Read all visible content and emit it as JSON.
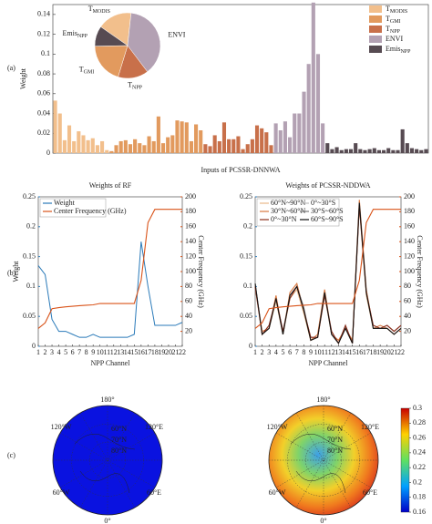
{
  "panel_labels": [
    "(a)",
    "(b)",
    "(c)"
  ],
  "chart_data": [
    {
      "type": "bar",
      "ylabel": "Weight",
      "xlabel": "Inputs of PCSSR-DNNWA",
      "ylim": [
        0,
        0.15
      ],
      "yticks": [
        0,
        0.02,
        0.04,
        0.06,
        0.08,
        0.1,
        0.12,
        0.14
      ],
      "legend": "upper right",
      "series": [
        {
          "name": "T",
          "sub": "MODIS",
          "color": "#f2bf8c",
          "values": [
            0.053,
            0.04,
            0.013,
            0.028,
            0.012,
            0.022,
            0.018,
            0.013,
            0.015,
            0.008,
            0.012,
            0.003
          ]
        },
        {
          "name": "T",
          "sub": "GMI",
          "color": "#e29a5e",
          "values": [
            0.002,
            0.008,
            0.012,
            0.013,
            0.009,
            0.014,
            0.01,
            0.008,
            0.017,
            0.012,
            0.037,
            0.01,
            0.016,
            0.018,
            0.033,
            0.032,
            0.031,
            0.012,
            0.029,
            0.023
          ]
        },
        {
          "name": "T",
          "sub": "NPP",
          "color": "#c8704a",
          "values": [
            0.009,
            0.007,
            0.018,
            0.012,
            0.031,
            0.014,
            0.014,
            0.017,
            0.004,
            0.009,
            0.014,
            0.028,
            0.025,
            0.021,
            0.008
          ]
        },
        {
          "name": "ENVI",
          "color": "#b3a1b3",
          "values": [
            0.03,
            0.023,
            0.032,
            0.016,
            0.04,
            0.04,
            0.062,
            0.09,
            0.152,
            0.1,
            0.03
          ]
        },
        {
          "name": "Emis",
          "sub": "NPP",
          "color": "#574b52",
          "values": [
            0.01,
            0.004,
            0.006,
            0.003,
            0.004,
            0.004,
            0.01,
            0.004,
            0.003,
            0.004,
            0.005,
            0.003,
            0.003,
            0.005,
            0.003,
            0.003,
            0.024,
            0.01,
            0.005,
            0.004,
            0.003,
            0.004
          ]
        }
      ]
    },
    {
      "type": "pie",
      "slices": [
        {
          "name": "T",
          "sub": "MODIS",
          "color": "#f2bf8c",
          "value": 17
        },
        {
          "name": "ENVI",
          "color": "#b3a1b3",
          "value": 38
        },
        {
          "name": "T",
          "sub": "NPP",
          "color": "#c8704a",
          "value": 15
        },
        {
          "name": "T",
          "sub": "GMI",
          "color": "#e29a5e",
          "value": 20
        },
        {
          "name": "Emis",
          "sub": "NPP",
          "color": "#574b52",
          "value": 10
        }
      ]
    },
    {
      "type": "line",
      "title": "Weights of RF",
      "xlabel": "NPP Channel",
      "ylabel": "Weight",
      "y2label": "Center Frequency (GHz)",
      "x": [
        1,
        2,
        3,
        4,
        5,
        6,
        7,
        8,
        9,
        10,
        11,
        12,
        13,
        14,
        15,
        16,
        17,
        18,
        19,
        20,
        21,
        22
      ],
      "xlim": [
        1,
        22
      ],
      "xticks": [
        1,
        2,
        3,
        4,
        5,
        6,
        7,
        8,
        9,
        10,
        11,
        12,
        13,
        14,
        15,
        16,
        17,
        18,
        19,
        20,
        21,
        22
      ],
      "ylim": [
        0,
        0.25
      ],
      "yticks": [
        0,
        0.05,
        0.1,
        0.15,
        0.2,
        0.25
      ],
      "y2lim": [
        0,
        200
      ],
      "y2ticks": [
        20,
        40,
        60,
        80,
        100,
        120,
        140,
        160,
        180,
        200
      ],
      "series": [
        {
          "name": "Weight",
          "color": "#2a7ab9",
          "values": [
            0.135,
            0.12,
            0.045,
            0.025,
            0.025,
            0.02,
            0.015,
            0.015,
            0.02,
            0.015,
            0.015,
            0.015,
            0.015,
            0.015,
            0.02,
            0.175,
            0.1,
            0.035,
            0.035,
            0.035,
            0.035,
            0.04
          ]
        },
        {
          "name": "Center Frequency (GHz)",
          "color": "#d95319",
          "axis": "y2",
          "values": [
            23.8,
            31.4,
            50.3,
            51.76,
            52.8,
            53.596,
            54.4,
            54.94,
            55.5,
            57.29,
            57.29,
            57.29,
            57.29,
            57.29,
            57.29,
            88.2,
            165.5,
            183.31,
            183.31,
            183.31,
            183.31,
            183.31
          ]
        }
      ]
    },
    {
      "type": "line",
      "title": "Weights of PCSSR-NDDWA",
      "xlabel": "NPP Channel",
      "y2label": "Center Frequency (GHz)",
      "x": [
        1,
        2,
        3,
        4,
        5,
        6,
        7,
        8,
        9,
        10,
        11,
        12,
        13,
        14,
        15,
        16,
        17,
        18,
        19,
        20,
        21,
        22
      ],
      "xlim": [
        1,
        22
      ],
      "xticks": [
        1,
        2,
        3,
        4,
        5,
        6,
        7,
        8,
        9,
        10,
        11,
        12,
        13,
        14,
        15,
        16,
        17,
        18,
        19,
        20,
        21,
        22
      ],
      "ylim": [
        0,
        0.25
      ],
      "yticks": [
        0,
        0.05,
        0.1,
        0.15,
        0.2,
        0.25
      ],
      "y2lim": [
        0,
        200
      ],
      "y2ticks": [
        20,
        40,
        60,
        80,
        100,
        120,
        140,
        160,
        180,
        200
      ],
      "series": [
        {
          "name": "60°N~90°N",
          "color": "#e8b98a",
          "values": [
            0.1,
            0.02,
            0.03,
            0.075,
            0.02,
            0.08,
            0.095,
            0.055,
            0.01,
            0.015,
            0.085,
            0.02,
            0.005,
            0.03,
            0.005,
            0.235,
            0.085,
            0.03,
            0.03,
            0.03,
            0.02,
            0.03
          ]
        },
        {
          "name": "0°~30°S",
          "color": "#bdbdbd",
          "values": [
            0.105,
            0.02,
            0.035,
            0.08,
            0.025,
            0.085,
            0.1,
            0.06,
            0.015,
            0.015,
            0.09,
            0.025,
            0.005,
            0.035,
            0.005,
            0.24,
            0.09,
            0.035,
            0.03,
            0.035,
            0.025,
            0.035
          ]
        },
        {
          "name": "30°N~60°N",
          "color": "#d9783f",
          "values": [
            0.1,
            0.025,
            0.03,
            0.085,
            0.02,
            0.09,
            0.105,
            0.06,
            0.01,
            0.02,
            0.095,
            0.02,
            0.01,
            0.03,
            0.01,
            0.245,
            0.095,
            0.03,
            0.035,
            0.03,
            0.02,
            0.03
          ]
        },
        {
          "name": "30°S~60°S",
          "color": "#7a7a7a",
          "values": [
            0.105,
            0.02,
            0.03,
            0.08,
            0.02,
            0.085,
            0.1,
            0.065,
            0.01,
            0.015,
            0.09,
            0.02,
            0.005,
            0.03,
            0.005,
            0.24,
            0.09,
            0.03,
            0.03,
            0.03,
            0.02,
            0.03
          ]
        },
        {
          "name": "0°~30°N",
          "color": "#8b2e1c",
          "values": [
            0.1,
            0.02,
            0.035,
            0.08,
            0.025,
            0.08,
            0.1,
            0.06,
            0.015,
            0.015,
            0.085,
            0.025,
            0.005,
            0.035,
            0.005,
            0.235,
            0.09,
            0.035,
            0.03,
            0.035,
            0.025,
            0.035
          ]
        },
        {
          "name": "60°S~90°S",
          "color": "#111111",
          "values": [
            0.105,
            0.02,
            0.03,
            0.08,
            0.02,
            0.085,
            0.1,
            0.06,
            0.01,
            0.015,
            0.09,
            0.02,
            0.005,
            0.03,
            0.005,
            0.24,
            0.09,
            0.03,
            0.03,
            0.03,
            0.02,
            0.03
          ]
        },
        {
          "name": "Center Frequency (GHz)",
          "color": "#d95319",
          "axis": "y2",
          "values": [
            23.8,
            31.4,
            50.3,
            51.76,
            52.8,
            53.596,
            54.4,
            54.94,
            55.5,
            57.29,
            57.29,
            57.29,
            57.29,
            57.29,
            57.29,
            88.2,
            165.5,
            183.31,
            183.31,
            183.31,
            183.31,
            183.31
          ]
        }
      ]
    }
  ],
  "maps": {
    "labels": [
      "180°",
      "120°W",
      "120°E",
      "60°W",
      "60°E",
      "0°"
    ],
    "rings": [
      "80°N",
      "70°N",
      "60°N"
    ],
    "colorbar": {
      "lim": [
        0.16,
        0.3
      ],
      "ticks": [
        0.16,
        0.18,
        0.2,
        0.22,
        0.24,
        0.26,
        0.28,
        0.3
      ]
    }
  }
}
